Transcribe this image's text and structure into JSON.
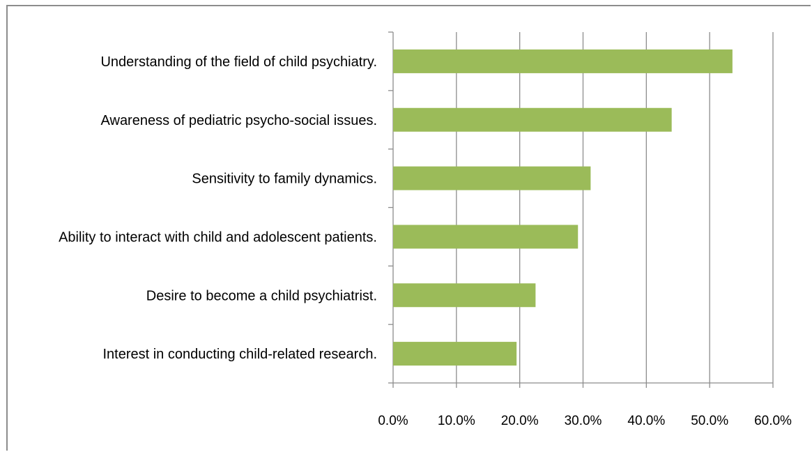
{
  "chart_data": {
    "type": "bar",
    "orientation": "horizontal",
    "title": "",
    "xlabel": "",
    "ylabel": "",
    "categories": [
      "Understanding of the field of child psychiatry.",
      "Awareness of pediatric psycho-social issues.",
      "Sensitivity to family dynamics.",
      "Ability to interact with child and adolescent patients.",
      "Desire to become a child psychiatrist.",
      "Interest in conducting child-related research."
    ],
    "values": [
      53.6,
      44.0,
      31.2,
      29.2,
      22.5,
      19.5
    ],
    "xlim": [
      0,
      60
    ],
    "xticks": [
      0,
      10,
      20,
      30,
      40,
      50,
      60
    ],
    "xtick_labels": [
      "0.0%",
      "10.0%",
      "20.0%",
      "30.0%",
      "40.0%",
      "50.0%",
      "60.0%"
    ],
    "grid": "vertical",
    "legend": "none",
    "bar_color": "#9bbb59"
  }
}
